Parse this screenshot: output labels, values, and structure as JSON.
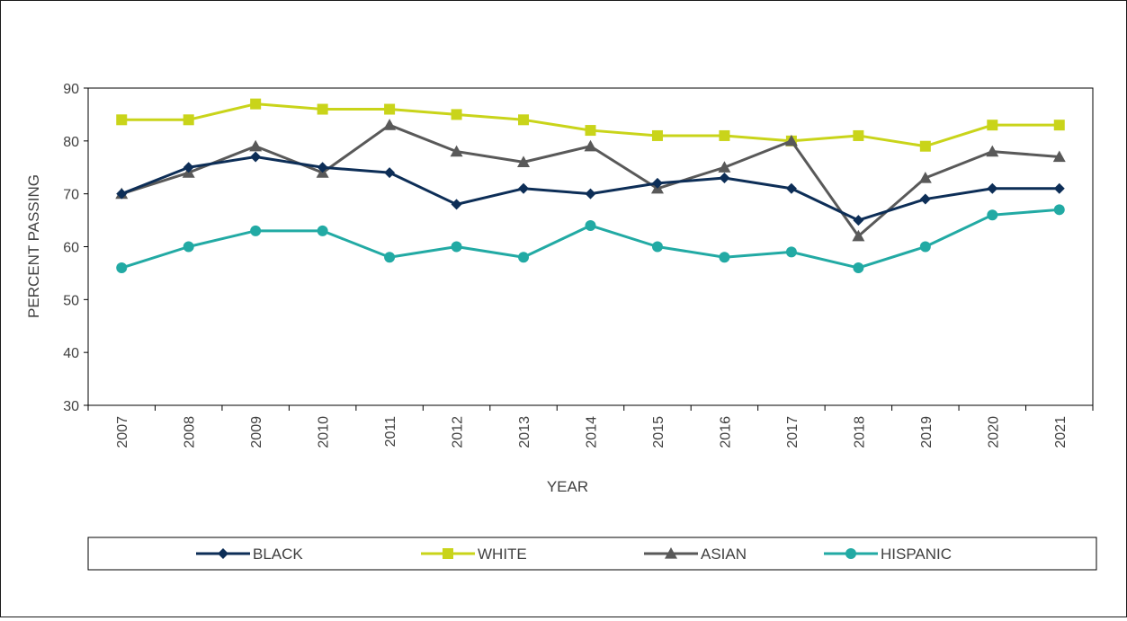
{
  "chart_data": {
    "type": "line",
    "title": "",
    "xlabel": "YEAR",
    "ylabel": "PERCENT PASSING",
    "ylim": [
      30,
      90
    ],
    "yticks": [
      30,
      40,
      50,
      60,
      70,
      80,
      90
    ],
    "grid": false,
    "legend_position": "bottom",
    "categories": [
      "2007",
      "2008",
      "2009",
      "2010",
      "2011",
      "2012",
      "2013",
      "2014",
      "2015",
      "2016",
      "2017",
      "2018",
      "2019",
      "2020",
      "2021"
    ],
    "series": [
      {
        "name": "BLACK",
        "color": "#0d2e57",
        "marker": "diamond",
        "values": [
          70,
          75,
          77,
          75,
          74,
          68,
          71,
          70,
          72,
          73,
          71,
          65,
          69,
          71,
          71
        ]
      },
      {
        "name": "WHITE",
        "color": "#c9d41a",
        "marker": "square",
        "values": [
          84,
          84,
          87,
          86,
          86,
          85,
          84,
          82,
          81,
          81,
          80,
          81,
          79,
          83,
          83
        ]
      },
      {
        "name": "ASIAN",
        "color": "#595959",
        "marker": "triangle",
        "values": [
          70,
          74,
          79,
          74,
          83,
          78,
          76,
          79,
          71,
          75,
          80,
          62,
          73,
          78,
          77
        ]
      },
      {
        "name": "HISPANIC",
        "color": "#22aaa4",
        "marker": "circle",
        "values": [
          56,
          60,
          63,
          63,
          58,
          60,
          58,
          64,
          60,
          58,
          59,
          56,
          60,
          66,
          67
        ]
      }
    ]
  }
}
